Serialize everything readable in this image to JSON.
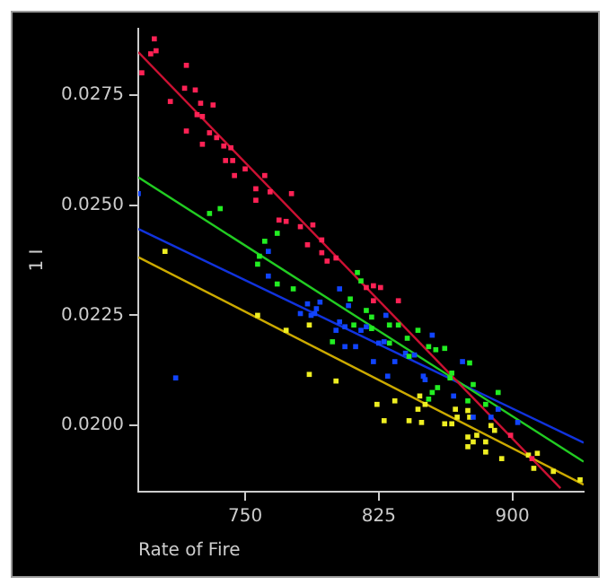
{
  "chart_data": {
    "type": "scatter",
    "xlabel": "Rate of Fire",
    "ylabel": "1 I",
    "xlim": [
      690,
      940
    ],
    "ylim": [
      0.0185,
      0.029
    ],
    "xticks": [
      750,
      825,
      900
    ],
    "yticks": [
      {
        "value": 0.02,
        "label": "0.0200"
      },
      {
        "value": 0.0225,
        "label": "0.0225"
      },
      {
        "value": 0.025,
        "label": "0.0250"
      },
      {
        "value": 0.0275,
        "label": "0.0275"
      }
    ],
    "grid": false,
    "legend": false,
    "marker": "square",
    "series": [
      {
        "type": "scatter",
        "color": "#ff2255",
        "x": [
          699,
          697,
          700,
          692,
          717,
          708,
          716,
          722,
          725,
          732,
          723,
          726,
          717,
          730,
          726,
          734,
          739,
          738,
          742,
          743,
          750,
          744,
          756,
          756,
          761,
          764,
          776,
          769,
          773,
          781,
          788,
          785,
          793,
          793,
          796,
          801,
          822,
          826,
          818,
          822,
          836,
          899,
          911
        ],
        "values": [
          0.02877,
          0.02843,
          0.0285,
          0.028,
          0.02817,
          0.02735,
          0.02765,
          0.02761,
          0.02731,
          0.02727,
          0.02705,
          0.02701,
          0.02668,
          0.02664,
          0.02638,
          0.02653,
          0.02601,
          0.02634,
          0.0263,
          0.02601,
          0.02582,
          0.02567,
          0.02537,
          0.02511,
          0.02567,
          0.0253,
          0.02526,
          0.02466,
          0.02463,
          0.02451,
          0.02455,
          0.0241,
          0.02421,
          0.02392,
          0.02373,
          0.0238,
          0.02317,
          0.02313,
          0.02313,
          0.02283,
          0.02283,
          0.01978,
          0.01925
        ]
      },
      {
        "type": "scatter",
        "color": "#22ee22",
        "x": [
          730,
          736,
          761,
          768,
          758,
          757,
          768,
          777,
          813,
          815,
          809,
          818,
          799,
          811,
          821,
          831,
          836,
          847,
          841,
          853,
          857,
          862,
          831,
          842,
          876,
          866,
          865,
          878,
          855,
          858,
          853,
          892,
          875,
          885,
          821
        ],
        "values": [
          0.02481,
          0.02492,
          0.02418,
          0.02436,
          0.02384,
          0.02366,
          0.02321,
          0.0231,
          0.02347,
          0.02328,
          0.02287,
          0.02261,
          0.0219,
          0.02228,
          0.0222,
          0.02228,
          0.02228,
          0.02216,
          0.02198,
          0.02179,
          0.02172,
          0.02175,
          0.02187,
          0.02157,
          0.02142,
          0.02119,
          0.02108,
          0.02093,
          0.02075,
          0.02086,
          0.0206,
          0.02075,
          0.02056,
          0.02048,
          0.02246
        ]
      },
      {
        "type": "scatter",
        "color": "#1144ff",
        "x": [
          690,
          763,
          763,
          711,
          781,
          785,
          787,
          790,
          792,
          789,
          803,
          806,
          801,
          806,
          812,
          815,
          818,
          825,
          828,
          834,
          822,
          830,
          840,
          845,
          855,
          850,
          851,
          872,
          867,
          878,
          888,
          892,
          903,
          829,
          803,
          808
        ],
        "values": [
          0.02526,
          0.02395,
          0.02339,
          0.02108,
          0.02254,
          0.02276,
          0.0225,
          0.02265,
          0.0228,
          0.02254,
          0.02235,
          0.02224,
          0.02216,
          0.02179,
          0.02179,
          0.02216,
          0.02224,
          0.02187,
          0.0219,
          0.02145,
          0.02145,
          0.02112,
          0.02164,
          0.0216,
          0.02205,
          0.02112,
          0.02104,
          0.02145,
          0.02067,
          0.02019,
          0.02019,
          0.02037,
          0.02007,
          0.0225,
          0.0231,
          0.02272
        ]
      },
      {
        "type": "scatter",
        "color": "#eeee22",
        "x": [
          705,
          757,
          773,
          786,
          786,
          801,
          824,
          828,
          834,
          842,
          847,
          849,
          851,
          862,
          866,
          869,
          868,
          875,
          876,
          875,
          875,
          878,
          880,
          885,
          885,
          888,
          890,
          894,
          909,
          912,
          914,
          923,
          938,
          848
        ],
        "values": [
          0.02395,
          0.0225,
          0.02216,
          0.02228,
          0.02116,
          0.02101,
          0.02048,
          0.02011,
          0.02056,
          0.02011,
          0.02037,
          0.02007,
          0.02048,
          0.02004,
          0.02004,
          0.02019,
          0.02037,
          0.02034,
          0.02019,
          0.01974,
          0.01952,
          0.01963,
          0.01978,
          0.0194,
          0.01963,
          0.02,
          0.01989,
          0.01925,
          0.01933,
          0.01903,
          0.01937,
          0.01896,
          0.01877,
          0.02067
        ]
      },
      {
        "type": "line",
        "marker": "none",
        "color": "#cc1133",
        "x": [
          690,
          927
        ],
        "values": [
          0.02847,
          0.01858
        ]
      },
      {
        "type": "line",
        "marker": "none",
        "color": "#22cc22",
        "x": [
          690,
          940
        ],
        "values": [
          0.02563,
          0.01918
        ]
      },
      {
        "type": "line",
        "marker": "none",
        "color": "#1133dd",
        "x": [
          690,
          940
        ],
        "values": [
          0.02446,
          0.01961
        ]
      },
      {
        "type": "line",
        "marker": "none",
        "color": "#ccaa00",
        "x": [
          690,
          940
        ],
        "values": [
          0.02382,
          0.01866
        ]
      }
    ]
  }
}
